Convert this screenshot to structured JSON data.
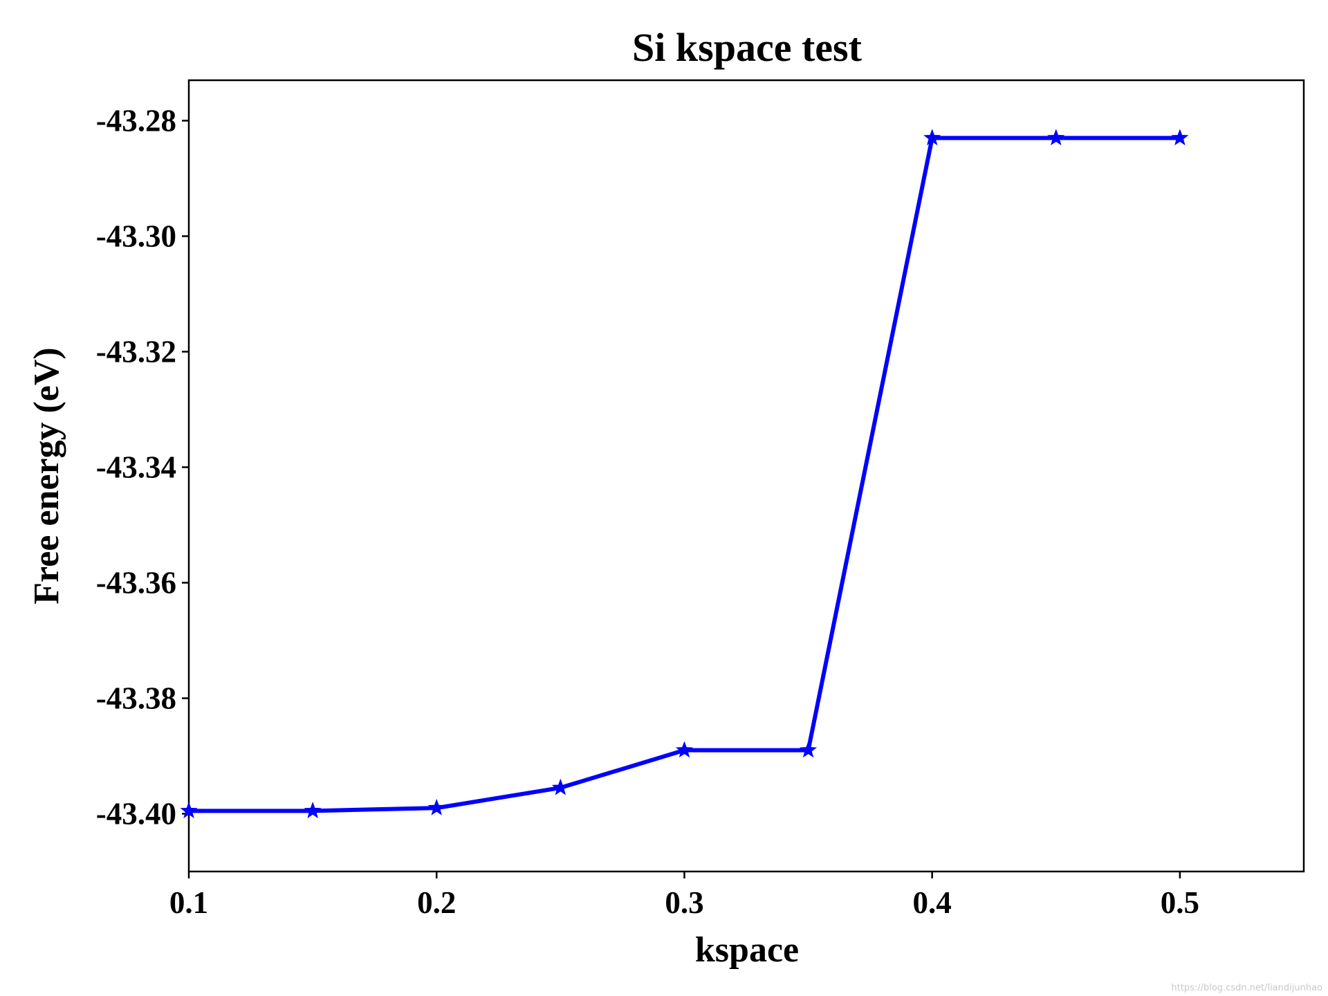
{
  "chart_data": {
    "type": "line",
    "title": "Si kspace test",
    "xlabel": "kspace",
    "ylabel": "Free energy (eV)",
    "x": [
      0.1,
      0.15,
      0.2,
      0.25,
      0.3,
      0.35,
      0.4,
      0.45,
      0.5
    ],
    "series": [
      {
        "values": [
          -43.3995,
          -43.3995,
          -43.399,
          -43.3955,
          -43.389,
          -43.389,
          -43.283,
          -43.283,
          -43.283
        ],
        "color": "#0000ff",
        "marker": "star"
      }
    ],
    "xlim": [
      0.1,
      0.55
    ],
    "ylim": [
      -43.41,
      -43.273
    ],
    "xticks": [
      0.1,
      0.2,
      0.3,
      0.4,
      0.5
    ],
    "xtick_labels": [
      "0.1",
      "0.2",
      "0.3",
      "0.4",
      "0.5"
    ],
    "yticks": [
      -43.28,
      -43.3,
      -43.32,
      -43.34,
      -43.36,
      -43.38,
      -43.4
    ],
    "ytick_labels": [
      "-43.28",
      "-43.30",
      "-43.32",
      "-43.34",
      "-43.36",
      "-43.38",
      "-43.40"
    ],
    "grid": false,
    "legend": false
  },
  "watermark": "https://blog.csdn.net/liandijunhao"
}
